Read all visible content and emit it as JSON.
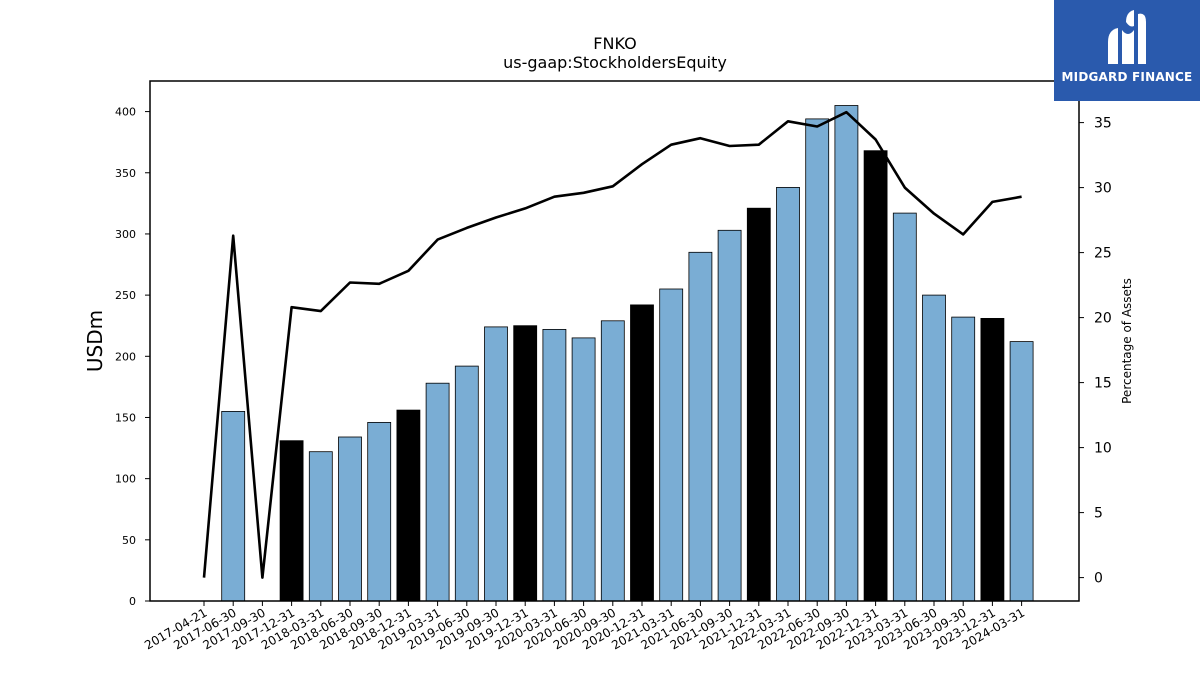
{
  "chart_data": {
    "type": "bar",
    "title": "FNKO",
    "subtitle": "us-gaap:StockholdersEquity",
    "ylabel": "USDm",
    "y2label": "Percentage of Assets",
    "ylim": [
      0,
      425
    ],
    "y2lim": [
      -1.8,
      38.2
    ],
    "yticks": [
      0,
      50,
      100,
      150,
      200,
      250,
      300,
      350,
      400
    ],
    "y2ticks": [
      0,
      5,
      10,
      15,
      20,
      25,
      30,
      35
    ],
    "categories": [
      "2017-04-21",
      "2017-06-30",
      "2017-09-30",
      "2017-12-31",
      "2018-03-31",
      "2018-06-30",
      "2018-09-30",
      "2018-12-31",
      "2019-03-31",
      "2019-06-30",
      "2019-09-30",
      "2019-12-31",
      "2020-03-31",
      "2020-06-30",
      "2020-09-30",
      "2020-12-31",
      "2021-03-31",
      "2021-06-30",
      "2021-09-30",
      "2021-12-31",
      "2022-03-31",
      "2022-06-30",
      "2022-09-30",
      "2022-12-31",
      "2023-03-31",
      "2023-06-30",
      "2023-09-30",
      "2023-12-31",
      "2024-03-31"
    ],
    "series": [
      {
        "type": "bar",
        "values": [
          0,
          155,
          0,
          131,
          122,
          134,
          146,
          156,
          178,
          192,
          224,
          225,
          222,
          215,
          229,
          242,
          255,
          285,
          303,
          321,
          338,
          394,
          405,
          368,
          317,
          250,
          232,
          231,
          212
        ],
        "colors": [
          "#7aadd4",
          "#7aadd4",
          "#7aadd4",
          "#000000",
          "#7aadd4",
          "#7aadd4",
          "#7aadd4",
          "#000000",
          "#7aadd4",
          "#7aadd4",
          "#7aadd4",
          "#000000",
          "#7aadd4",
          "#7aadd4",
          "#7aadd4",
          "#000000",
          "#7aadd4",
          "#7aadd4",
          "#7aadd4",
          "#000000",
          "#7aadd4",
          "#7aadd4",
          "#7aadd4",
          "#000000",
          "#7aadd4",
          "#7aadd4",
          "#7aadd4",
          "#000000",
          "#7aadd4"
        ]
      },
      {
        "type": "line",
        "axis": "right",
        "color": "#000000",
        "values": [
          0,
          26.3,
          0,
          20.8,
          20.5,
          22.7,
          22.6,
          23.6,
          26.0,
          26.9,
          27.7,
          28.4,
          29.3,
          29.6,
          30.1,
          31.8,
          33.3,
          33.8,
          33.2,
          33.3,
          35.1,
          34.7,
          35.8,
          33.7,
          30.0,
          28.0,
          26.4,
          28.9,
          29.3
        ]
      }
    ],
    "grid": false
  },
  "logo": {
    "text": "MIDGARD FINANCE"
  }
}
